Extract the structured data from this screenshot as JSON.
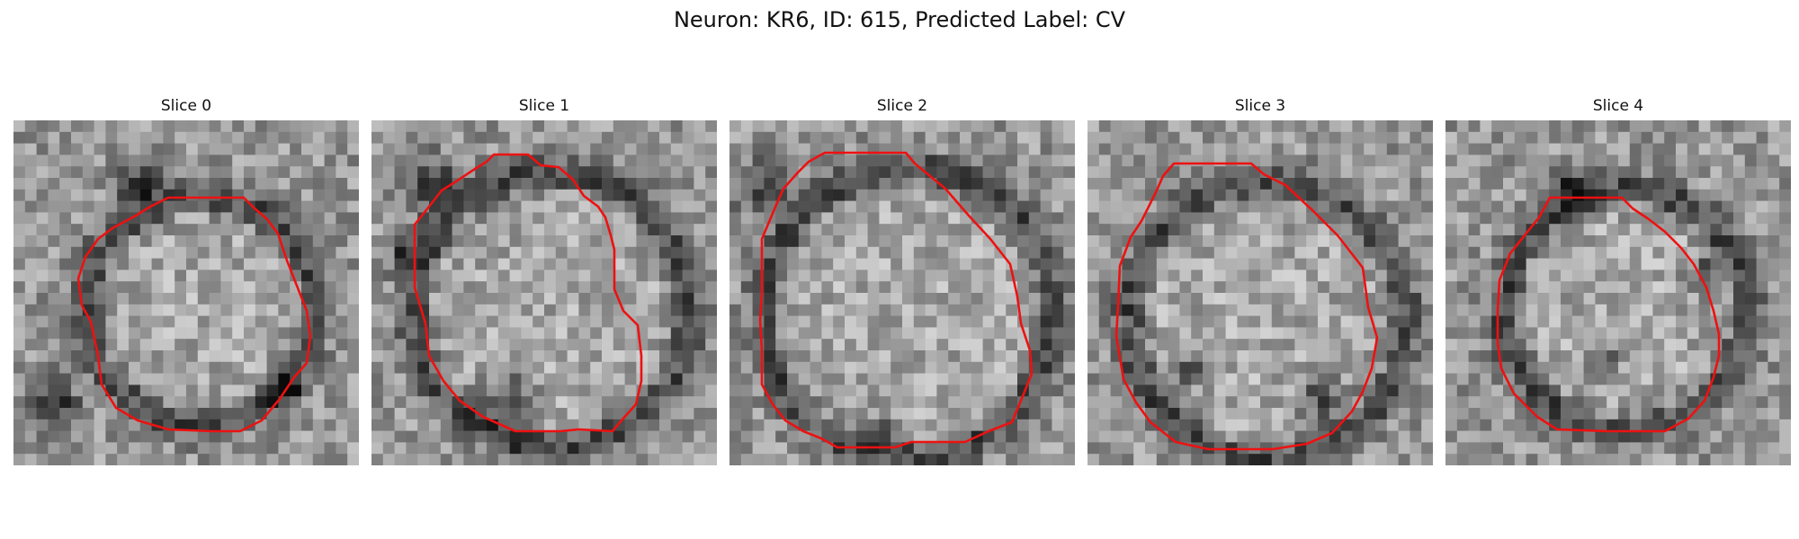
{
  "figure": {
    "title": "Neuron: KR6, ID: 615, Predicted Label: CV"
  },
  "panels": [
    {
      "title": "Slice 0"
    },
    {
      "title": "Slice 1"
    },
    {
      "title": "Slice 2"
    },
    {
      "title": "Slice 3"
    },
    {
      "title": "Slice 4"
    }
  ],
  "colors": {
    "contour": "#ee1111",
    "background": "#ffffff"
  }
}
